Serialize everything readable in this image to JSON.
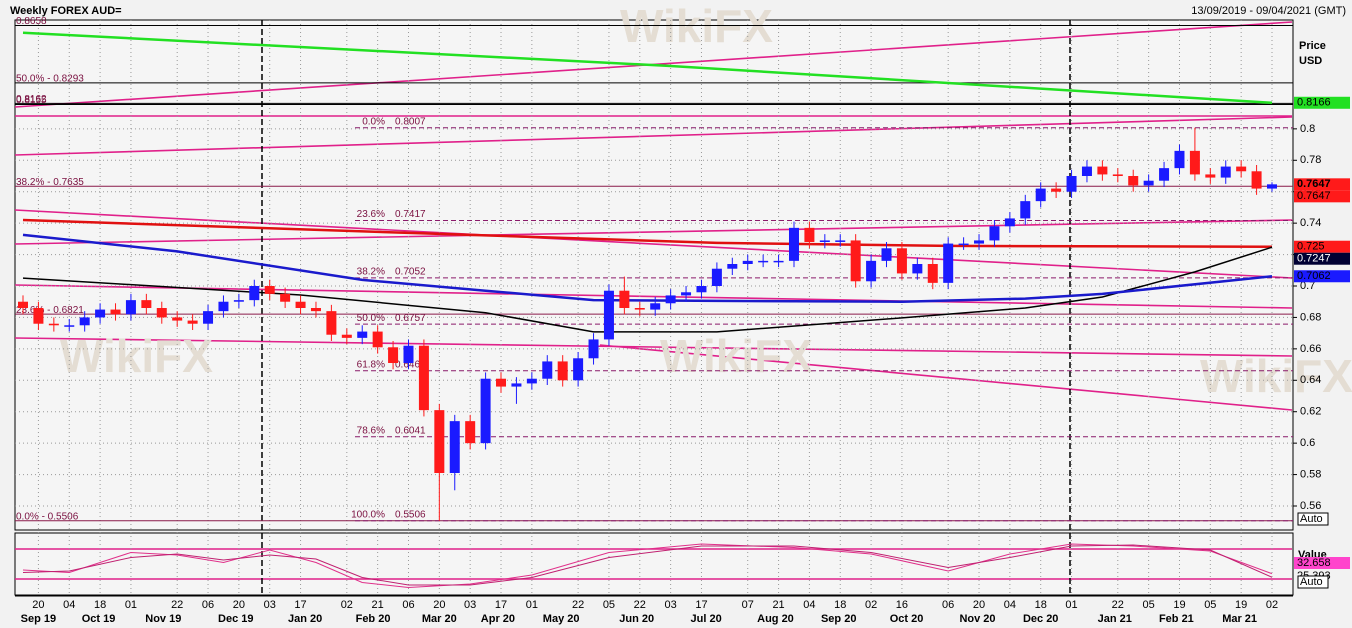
{
  "header": {
    "title": "Weekly FOREX AUD=",
    "date_range": "13/09/2019 - 09/04/2021 (GMT)"
  },
  "watermark": "WikiFX",
  "chart_data": {
    "type": "candlestick",
    "y_axis_label": [
      "Price",
      "USD"
    ],
    "ylim": [
      0.546,
      0.868
    ],
    "yticks": [
      0.56,
      0.58,
      0.6,
      0.62,
      0.64,
      0.66,
      0.68,
      0.7,
      0.72,
      0.74,
      0.76,
      0.78,
      0.8
    ],
    "grid": true,
    "up_color": "#1a1aff",
    "down_color": "#ff1a1a",
    "x_day_ticks": [
      {
        "value": 1,
        "label": "20"
      },
      {
        "value": 3,
        "label": "04"
      },
      {
        "value": 5,
        "label": "18"
      },
      {
        "value": 7,
        "label": "01"
      },
      {
        "value": 10,
        "label": "22"
      },
      {
        "value": 12,
        "label": "06"
      },
      {
        "value": 14,
        "label": "20"
      },
      {
        "value": 16,
        "label": "03"
      },
      {
        "value": 18,
        "label": "17"
      },
      {
        "value": 21,
        "label": "02"
      },
      {
        "value": 23,
        "label": "21"
      },
      {
        "value": 25,
        "label": "06"
      },
      {
        "value": 27,
        "label": "20"
      },
      {
        "value": 29,
        "label": "03"
      },
      {
        "value": 31,
        "label": "17"
      },
      {
        "value": 33,
        "label": "01"
      },
      {
        "value": 36,
        "label": "22"
      },
      {
        "value": 38,
        "label": "05"
      },
      {
        "value": 40,
        "label": "22"
      },
      {
        "value": 42,
        "label": "03"
      },
      {
        "value": 44,
        "label": "17"
      },
      {
        "value": 47,
        "label": "07"
      },
      {
        "value": 49,
        "label": "21"
      },
      {
        "value": 51,
        "label": "04"
      },
      {
        "value": 53,
        "label": "18"
      },
      {
        "value": 55,
        "label": "02"
      },
      {
        "value": 57,
        "label": "16"
      },
      {
        "value": 60,
        "label": "06"
      },
      {
        "value": 62,
        "label": "20"
      },
      {
        "value": 64,
        "label": "04"
      },
      {
        "value": 66,
        "label": "18"
      },
      {
        "value": 68,
        "label": "01"
      },
      {
        "value": 71,
        "label": "22"
      },
      {
        "value": 73,
        "label": "05"
      },
      {
        "value": 75,
        "label": "19"
      },
      {
        "value": 77,
        "label": "05"
      },
      {
        "value": 79,
        "label": "19"
      },
      {
        "value": 81,
        "label": "02"
      }
    ],
    "x_month_ticks": [
      {
        "value": 1.0,
        "label": "Sep 19"
      },
      {
        "value": 4.9,
        "label": "Oct 19"
      },
      {
        "value": 9.1,
        "label": "Nov 19"
      },
      {
        "value": 13.8,
        "label": "Dec 19"
      },
      {
        "value": 18.3,
        "label": "Jan 20"
      },
      {
        "value": 22.7,
        "label": "Feb 20"
      },
      {
        "value": 27.0,
        "label": "Mar 20"
      },
      {
        "value": 30.8,
        "label": "Apr 20"
      },
      {
        "value": 34.9,
        "label": "May 20"
      },
      {
        "value": 39.8,
        "label": "Jun 20"
      },
      {
        "value": 44.3,
        "label": "Jul 20"
      },
      {
        "value": 48.8,
        "label": "Aug 20"
      },
      {
        "value": 52.9,
        "label": "Sep 20"
      },
      {
        "value": 57.3,
        "label": "Oct 20"
      },
      {
        "value": 61.9,
        "label": "Nov 20"
      },
      {
        "value": 66.0,
        "label": "Dec 20"
      },
      {
        "value": 70.8,
        "label": "Jan 21"
      },
      {
        "value": 74.8,
        "label": "Feb 21"
      },
      {
        "value": 78.9,
        "label": "Mar 21"
      }
    ],
    "open": [
      0.69,
      0.686,
      0.676,
      0.675,
      0.675,
      0.68,
      0.685,
      0.682,
      0.691,
      0.686,
      0.68,
      0.678,
      0.676,
      0.684,
      0.69,
      0.691,
      0.7,
      0.695,
      0.69,
      0.686,
      0.684,
      0.669,
      0.667,
      0.671,
      0.661,
      0.651,
      0.662,
      0.621,
      0.581,
      0.614,
      0.6,
      0.641,
      0.636,
      0.638,
      0.641,
      0.652,
      0.64,
      0.654,
      0.666,
      0.697,
      0.686,
      0.685,
      0.689,
      0.694,
      0.696,
      0.7,
      0.711,
      0.714,
      0.716,
      0.716,
      0.716,
      0.737,
      0.728,
      0.729,
      0.729,
      0.703,
      0.716,
      0.724,
      0.708,
      0.714,
      0.702,
      0.727,
      0.727,
      0.729,
      0.738,
      0.743,
      0.754,
      0.762,
      0.76,
      0.77,
      0.776,
      0.771,
      0.77,
      0.764,
      0.767,
      0.775,
      0.786,
      0.771,
      0.769,
      0.776,
      0.773,
      0.762
    ],
    "high": [
      0.694,
      0.69,
      0.68,
      0.679,
      0.684,
      0.689,
      0.689,
      0.695,
      0.695,
      0.69,
      0.684,
      0.682,
      0.688,
      0.694,
      0.695,
      0.704,
      0.704,
      0.699,
      0.694,
      0.69,
      0.688,
      0.673,
      0.675,
      0.675,
      0.665,
      0.666,
      0.666,
      0.625,
      0.618,
      0.618,
      0.645,
      0.645,
      0.642,
      0.645,
      0.656,
      0.656,
      0.658,
      0.67,
      0.701,
      0.706,
      0.69,
      0.693,
      0.698,
      0.7,
      0.704,
      0.715,
      0.718,
      0.72,
      0.72,
      0.72,
      0.741,
      0.741,
      0.733,
      0.733,
      0.733,
      0.72,
      0.728,
      0.728,
      0.718,
      0.718,
      0.731,
      0.731,
      0.733,
      0.742,
      0.747,
      0.758,
      0.766,
      0.766,
      0.774,
      0.78,
      0.78,
      0.775,
      0.774,
      0.771,
      0.779,
      0.79,
      0.8007,
      0.775,
      0.78,
      0.78,
      0.777,
      0.766
    ],
    "low": [
      0.682,
      0.672,
      0.671,
      0.671,
      0.671,
      0.676,
      0.678,
      0.678,
      0.682,
      0.676,
      0.674,
      0.672,
      0.672,
      0.68,
      0.686,
      0.687,
      0.691,
      0.686,
      0.682,
      0.68,
      0.665,
      0.663,
      0.663,
      0.657,
      0.647,
      0.647,
      0.617,
      0.5506,
      0.57,
      0.596,
      0.596,
      0.632,
      0.625,
      0.634,
      0.637,
      0.636,
      0.636,
      0.65,
      0.662,
      0.682,
      0.681,
      0.681,
      0.685,
      0.69,
      0.692,
      0.696,
      0.707,
      0.71,
      0.712,
      0.712,
      0.712,
      0.724,
      0.724,
      0.725,
      0.699,
      0.699,
      0.712,
      0.704,
      0.704,
      0.698,
      0.698,
      0.723,
      0.723,
      0.725,
      0.734,
      0.739,
      0.75,
      0.756,
      0.756,
      0.766,
      0.767,
      0.766,
      0.76,
      0.76,
      0.763,
      0.771,
      0.767,
      0.765,
      0.765,
      0.769,
      0.758,
      0.76
    ],
    "close": [
      0.686,
      0.676,
      0.675,
      0.675,
      0.68,
      0.685,
      0.682,
      0.691,
      0.686,
      0.68,
      0.678,
      0.676,
      0.684,
      0.69,
      0.691,
      0.7,
      0.695,
      0.69,
      0.686,
      0.684,
      0.669,
      0.667,
      0.671,
      0.661,
      0.651,
      0.662,
      0.621,
      0.581,
      0.614,
      0.6,
      0.641,
      0.636,
      0.638,
      0.641,
      0.652,
      0.64,
      0.654,
      0.666,
      0.697,
      0.686,
      0.685,
      0.689,
      0.694,
      0.696,
      0.7,
      0.711,
      0.714,
      0.716,
      0.716,
      0.716,
      0.737,
      0.728,
      0.729,
      0.729,
      0.703,
      0.716,
      0.724,
      0.708,
      0.714,
      0.702,
      0.727,
      0.727,
      0.729,
      0.738,
      0.743,
      0.754,
      0.762,
      0.76,
      0.77,
      0.776,
      0.771,
      0.77,
      0.764,
      0.767,
      0.775,
      0.786,
      0.771,
      0.769,
      0.776,
      0.773,
      0.762,
      0.7647
    ],
    "moving_averages": [
      {
        "color": "#22e022",
        "label_color": "#22e022",
        "text_color": "#000",
        "x": [
          0,
          42,
          81
        ],
        "values": [
          0.8611,
          0.84,
          0.8166
        ]
      },
      {
        "color": "#e01010",
        "label_color": "#ff1a1a",
        "text_color": "#000",
        "x": [
          0,
          25,
          45,
          60,
          81
        ],
        "values": [
          0.742,
          0.7338,
          0.7274,
          0.7255,
          0.725
        ]
      },
      {
        "color": "#000000",
        "label_color": "#000033",
        "text_color": "#fff",
        "x": [
          0,
          18,
          30,
          37,
          45,
          57,
          65,
          70,
          76,
          81
        ],
        "values": [
          0.705,
          0.6943,
          0.683,
          0.6708,
          0.6708,
          0.6797,
          0.686,
          0.693,
          0.709,
          0.7247
        ]
      },
      {
        "color": "#1a1acc",
        "label_color": "#1a1aff",
        "text_color": "#000",
        "x": [
          0,
          10,
          22,
          30,
          37,
          45,
          57,
          65,
          70,
          81
        ],
        "values": [
          0.7325,
          0.722,
          0.7039,
          0.697,
          0.691,
          0.6905,
          0.69,
          0.692,
          0.695,
          0.7062
        ]
      }
    ],
    "fib_left": [
      {
        "value": 0.8658,
        "label": "0.8658"
      },
      {
        "value": 0.8293,
        "label": "50.0% - 0.8293"
      },
      {
        "value": 0.8162,
        "label": "0.8162"
      },
      {
        "value": 0.8155,
        "label": "0.8155"
      },
      {
        "value": 0.7635,
        "label": "38.2% - 0.7635"
      },
      {
        "value": 0.6821,
        "label": "23.6% - 0.6821"
      },
      {
        "value": 0.5506,
        "label": "0.0% - 0.5506"
      }
    ],
    "fib_retracement": [
      {
        "pct": "0.0%",
        "value": 0.8007
      },
      {
        "pct": "23.6%",
        "value": 0.7417
      },
      {
        "pct": "38.2%",
        "value": 0.7052
      },
      {
        "pct": "50.0%",
        "value": 0.6757
      },
      {
        "pct": "61.8%",
        "value": 0.6461
      },
      {
        "pct": "78.6%",
        "value": 0.6041
      },
      {
        "pct": "100.0%",
        "value": 0.5506
      }
    ],
    "indicator": {
      "type": "line",
      "label": "Value",
      "ylim": [
        0,
        100
      ],
      "series": [
        {
          "color": "#e0308a",
          "label_color": "#ff44cc",
          "x": [
            0,
            3,
            7,
            10,
            13,
            16,
            19,
            22,
            25,
            29,
            33,
            38,
            44,
            50,
            55,
            60,
            64,
            68,
            72,
            77,
            81
          ],
          "values": [
            40,
            35,
            75,
            70,
            55,
            80,
            55,
            15,
            5,
            12,
            30,
            75,
            92,
            85,
            72,
            38,
            72,
            92,
            88,
            78,
            32.658
          ]
        },
        {
          "color": "#c02070",
          "label_color": "#f2f2f2",
          "x": [
            0,
            3,
            7,
            10,
            13,
            16,
            19,
            22,
            25,
            29,
            33,
            38,
            44,
            50,
            55,
            60,
            64,
            68,
            72,
            77,
            81
          ],
          "values": [
            35,
            38,
            65,
            72,
            60,
            70,
            62,
            25,
            10,
            10,
            25,
            65,
            88,
            88,
            75,
            45,
            65,
            88,
            90,
            80,
            25.393
          ]
        }
      ]
    },
    "auto_button": "Auto"
  }
}
